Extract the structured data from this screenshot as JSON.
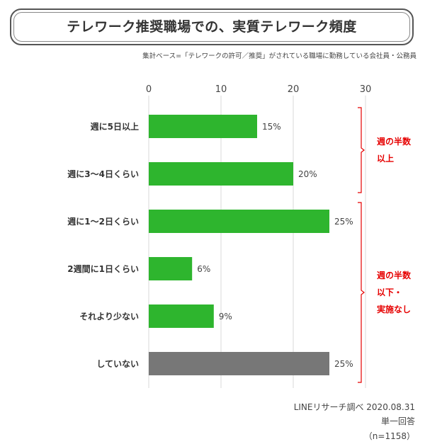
{
  "title": "テレワーク推奨職場での、実質テレワーク頻度",
  "subtitle": "集計ベース=「テレワークの許可／推奨」がされている職場に勤務している会社員・公務員",
  "chart_data": {
    "type": "bar",
    "orientation": "horizontal",
    "categories": [
      "週に5日以上",
      "週に3〜4日くらい",
      "週に1〜2日くらい",
      "2週間に1日くらい",
      "それより少ない",
      "していない"
    ],
    "values": [
      15,
      20,
      25,
      6,
      9,
      25
    ],
    "value_labels": [
      "15%",
      "20%",
      "25%",
      "6%",
      "9%",
      "25%"
    ],
    "xlim": [
      0,
      30
    ],
    "xticks": [
      0,
      10,
      20,
      30
    ],
    "grid": true,
    "bar_colors": [
      "#2eb52e",
      "#2eb52e",
      "#2eb52e",
      "#2eb52e",
      "#2eb52e",
      "#777777"
    ],
    "annotations": [
      {
        "lines": [
          "週の半数",
          "以上"
        ],
        "from_category": 0,
        "to_category": 1,
        "color": "#e60000"
      },
      {
        "lines": [
          "週の半数",
          "以下・",
          "実施なし"
        ],
        "from_category": 2,
        "to_category": 5,
        "color": "#e60000"
      }
    ]
  },
  "footer": {
    "source": "LINEリサーチ調べ 2020.08.31",
    "answer_type": "単一回答",
    "sample": "（n=1158）"
  }
}
